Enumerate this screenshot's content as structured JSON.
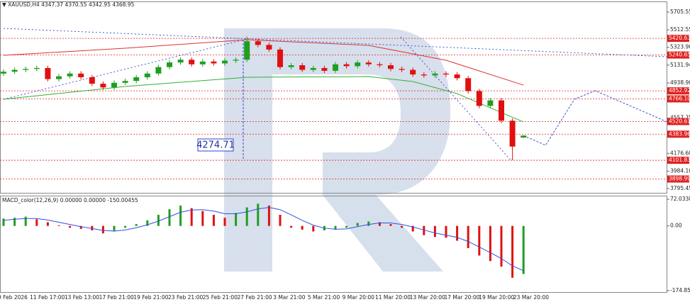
{
  "chart_data": {
    "type": "candlestick",
    "symbol": "XAUUSD,H4",
    "open": [
      5040,
      5060,
      5080,
      5090,
      5100,
      4980,
      5010,
      5040,
      5000,
      4930,
      4890,
      4940,
      4960,
      5000,
      5040,
      5110,
      5160,
      5190,
      5140,
      5170,
      5150,
      5180,
      5190,
      5390,
      5350,
      5300,
      5110,
      5130,
      5080,
      5100,
      5070,
      5140,
      5120,
      5160,
      5140,
      5130,
      5090,
      5080,
      5030,
      5020,
      5040,
      5030,
      4990,
      4850,
      4690,
      4750,
      4530,
      4347.37
    ],
    "high": [
      5085,
      5105,
      5115,
      5125,
      5125,
      5035,
      5065,
      5065,
      5025,
      4955,
      4965,
      4985,
      5025,
      5065,
      5135,
      5185,
      5215,
      5215,
      5195,
      5195,
      5205,
      5215,
      5440,
      5415,
      5375,
      5325,
      5155,
      5155,
      5125,
      5125,
      5165,
      5165,
      5185,
      5185,
      5165,
      5155,
      5115,
      5105,
      5055,
      5065,
      5065,
      5055,
      5015,
      4875,
      4775,
      4775,
      4555,
      4370.55
    ],
    "low": [
      5015,
      5035,
      5055,
      5065,
      4955,
      4955,
      4985,
      4975,
      4905,
      4865,
      4865,
      4915,
      4935,
      4975,
      5015,
      5085,
      5135,
      5115,
      5115,
      5125,
      5125,
      5155,
      5165,
      5325,
      5275,
      5085,
      5085,
      5055,
      5055,
      5045,
      5045,
      5095,
      5095,
      5115,
      5105,
      5065,
      5055,
      5005,
      4995,
      4995,
      5005,
      4965,
      4825,
      4665,
      4665,
      4505,
      4101.83,
      4342.95
    ],
    "close": [
      5060,
      5080,
      5090,
      5100,
      4980,
      5010,
      5040,
      5000,
      4930,
      4890,
      4940,
      4960,
      5000,
      5040,
      5110,
      5160,
      5190,
      5140,
      5170,
      5150,
      5180,
      5190,
      5390,
      5350,
      5300,
      5110,
      5130,
      5080,
      5100,
      5070,
      5140,
      5120,
      5160,
      5140,
      5130,
      5090,
      5080,
      5030,
      5020,
      5040,
      5030,
      4990,
      4850,
      4690,
      4750,
      4530,
      4250,
      4368.95
    ],
    "up_color": "#1f9e1f",
    "down_color": "#e01010",
    "time_labels": [
      "9 Feb 2026",
      "11 Feb 17:00",
      "13 Feb 13:00",
      "17 Feb 21:00",
      "19 Feb 21:00",
      "23 Feb 21:00",
      "25 Feb 21:00",
      "27 Feb 21:00",
      "3 Mar 21:00",
      "5 Mar 21:00",
      "9 Mar 20:00",
      "11 Mar 20:00",
      "13 Mar 20:00",
      "17 Mar 20:00",
      "19 Mar 20:00",
      "23 Mar 20:00"
    ],
    "ylim": [
      3749.4,
      5820.6
    ],
    "yticks": [
      5705.55,
      5512.55,
      {
        "value": 5323.9,
        "label": "5323.90"
      },
      5131.94,
      {
        "value": 4938.9,
        "label": "4938.90"
      },
      4557.75,
      {
        "value": 4176.6,
        "label": "4176.60"
      },
      {
        "value": 3984.1,
        "label": "3984.10"
      },
      3795.45
    ],
    "levels": [
      5420.63,
      5240.65,
      4852.92,
      4766.1,
      4520.61,
      4383.96,
      4101.83,
      3898.99
    ],
    "level_labels": [
      "5420.63",
      "5240.65",
      "4852.92",
      "4766.10",
      "4520.61",
      "4383.96",
      "4101.83",
      "3898.99"
    ],
    "level_color": "#e02020",
    "annotation": "4274.71",
    "indicators": [
      {
        "color": "#e03030",
        "bar_index": [
          0,
          11,
          22,
          33,
          40,
          47
        ],
        "values": [
          5238,
          5314,
          5406,
          5345,
          5184,
          4915
        ]
      },
      {
        "color": "#33b033",
        "bar_index": [
          0,
          11,
          22,
          33,
          37,
          41,
          47
        ],
        "values": [
          4762,
          4900,
          5000,
          5007,
          4954,
          4823,
          4516
        ]
      }
    ],
    "trend_lines": [
      {
        "color": "#3344cc",
        "bar_index": [
          0,
          60
        ],
        "values": [
          5529,
          5222
        ]
      },
      {
        "color": "#3344cc",
        "bar_index": [
          0,
          22
        ],
        "values": [
          4762,
          5414
        ]
      },
      {
        "color": "#3344cc",
        "bar_index": [
          35.9,
          45.8
        ],
        "values": [
          5437,
          4110
        ]
      }
    ],
    "forecast": {
      "color": "#3344cc",
      "bar_index": [
        47,
        49,
        51.6,
        53.5,
        60
      ],
      "values": [
        4368.95,
        4264,
        4762,
        4854,
        4516
      ]
    },
    "macd": {
      "title": "MACD_color(12,26,9) 0.00000 0.00000 -150.00455",
      "values": [
        20,
        22,
        25,
        18,
        10,
        2,
        -5,
        -8,
        -12,
        -20,
        -15,
        -5,
        5,
        15,
        30,
        45,
        55,
        48,
        40,
        30,
        22,
        35,
        50,
        60,
        55,
        30,
        -5,
        -10,
        -15,
        -12,
        -10,
        -5,
        8,
        12,
        10,
        5,
        -5,
        -15,
        -25,
        -30,
        -32,
        -40,
        -60,
        -80,
        -95,
        -110,
        -140,
        -130
      ],
      "signal": [
        15,
        18,
        20,
        20,
        16,
        10,
        4,
        -2,
        -7,
        -12,
        -14,
        -11,
        -5,
        3,
        13,
        25,
        37,
        43,
        44,
        40,
        33,
        33,
        38,
        46,
        50,
        44,
        30,
        15,
        2,
        -6,
        -9,
        -8,
        -2,
        4,
        8,
        8,
        4,
        -3,
        -11,
        -19,
        -25,
        -31,
        -42,
        -57,
        -72,
        -88,
        -108,
        -121
      ],
      "up_color": "#1f9e1f",
      "down_color": "#e01010",
      "signal_color": "#3050e0",
      "ylim": [
        -178.75,
        81.75
      ],
      "yticks": [
        72.03388,
        {
          "value": 0,
          "label": "0.00"
        },
        -174.85986
      ]
    }
  }
}
